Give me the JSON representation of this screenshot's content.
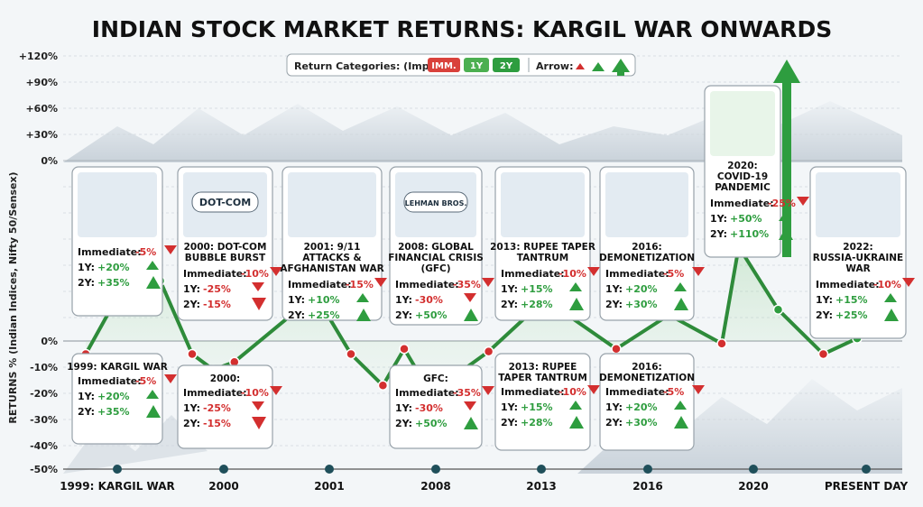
{
  "title": "INDIAN STOCK MARKET RETURNS: KARGIL WAR ONWARDS",
  "ylabel": "RETURNS % (Indian Indices, Nifty 50/Sensex)",
  "legend": {
    "label": "Return Categories: (Imp):",
    "items": [
      {
        "label": "IMM.",
        "color": "#d9413b"
      },
      {
        "label": "1Y",
        "color": "#4caf50"
      },
      {
        "label": "2Y",
        "color": "#2e9d3f"
      }
    ],
    "arrow_label": "Arrow:"
  },
  "colors": {
    "up": "#2e9d3f",
    "down": "#d32f2f",
    "line": "#2e8b3a",
    "node": "#1f4f5a"
  },
  "chart_data": {
    "type": "line",
    "ylim": [
      -50,
      120
    ],
    "ytick_labels": [
      "+120%",
      "+90%",
      "+60%",
      "+30%",
      "0%",
      "-10%",
      "-20%",
      "-30%",
      "-40%",
      "-50%"
    ],
    "xtick_labels": [
      "1999: KARGIL WAR",
      "2000",
      "2001",
      "2008",
      "2013",
      "2016",
      "2020",
      "PRESENT DAY"
    ],
    "points": [
      {
        "x": 0.0,
        "y": -5
      },
      {
        "x": 0.3,
        "y": 17
      },
      {
        "x": 0.7,
        "y": 23
      },
      {
        "x": 1.0,
        "y": -5
      },
      {
        "x": 1.2,
        "y": -11
      },
      {
        "x": 1.4,
        "y": -8
      },
      {
        "x": 2.0,
        "y": 12
      },
      {
        "x": 2.25,
        "y": 12
      },
      {
        "x": 2.5,
        "y": -5
      },
      {
        "x": 2.8,
        "y": -17
      },
      {
        "x": 3.0,
        "y": -3
      },
      {
        "x": 3.25,
        "y": -20
      },
      {
        "x": 3.8,
        "y": -4
      },
      {
        "x": 4.2,
        "y": 11
      },
      {
        "x": 4.4,
        "y": 14
      },
      {
        "x": 5.0,
        "y": -3
      },
      {
        "x": 5.5,
        "y": 10
      },
      {
        "x": 6.0,
        "y": -1
      },
      {
        "x": 6.15,
        "y": 36
      },
      {
        "x": 6.5,
        "y": 12
      },
      {
        "x": 6.9,
        "y": -5
      },
      {
        "x": 7.2,
        "y": 1
      }
    ],
    "covid_arrow_label": ""
  },
  "events": [
    {
      "title": "",
      "imm": "-5%",
      "y1": "+20%",
      "y2": "+35%"
    },
    {
      "title": "2000: DOT-COM BUBBLE BURST",
      "imm": "-10%",
      "y1": "-25%",
      "y2": "-15%",
      "badge": "DOT-COM"
    },
    {
      "title": "2001: 9/11 ATTACKS & AFGHANISTAN WAR",
      "imm": "-15%",
      "y1": "+10%",
      "y2": "+25%"
    },
    {
      "title": "2008: GLOBAL FINANCIAL CRISIS (GFC)",
      "imm": "-35%",
      "y1": "-30%",
      "y2": "+50%",
      "badge": "LEHMAN BROS."
    },
    {
      "title": "2013: RUPEE TAPER TANTRUM",
      "imm": "-10%",
      "y1": "+15%",
      "y2": "+28%"
    },
    {
      "title": "2016: DEMONETIZATION",
      "imm": "-5%",
      "y1": "+20%",
      "y2": "+30%"
    },
    {
      "title": "2020: COVID-19 PANDEMIC",
      "imm": "-25%",
      "y1": "+50%",
      "y2": "+110%"
    },
    {
      "title": "2022: RUSSIA-UKRAINE WAR",
      "imm": "-10%",
      "y1": "+15%",
      "y2": "+25%"
    }
  ],
  "lower_events": [
    {
      "title": "1999: KARGIL WAR",
      "imm": "-5%",
      "y1": "+20%",
      "y2": "+35%"
    },
    {
      "title": "2000:",
      "imm": "-10%",
      "y1": "-25%",
      "y2": "-15%"
    },
    {
      "title": "GFC:",
      "imm": "-35%",
      "y1": "-30%",
      "y2": "+50%"
    },
    {
      "title": "2013: RUPEE TAPER TANTRUM",
      "imm": "-10%",
      "y1": "+15%",
      "y2": "+28%"
    },
    {
      "title": "2016: DEMONETIZATION",
      "imm": "-5%",
      "y1": "+20%",
      "y2": "+30%"
    }
  ],
  "labels": {
    "immediate": "Immediate:",
    "y1": "1Y:",
    "y2": "2Y:"
  }
}
